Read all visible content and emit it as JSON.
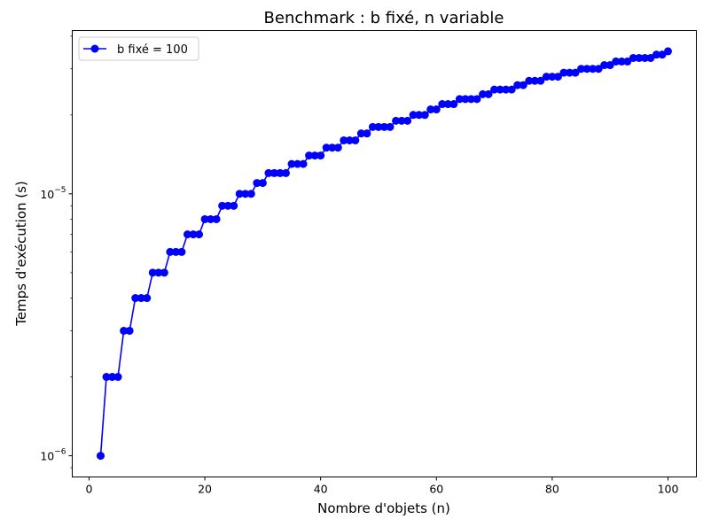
{
  "chart_data": {
    "type": "line",
    "title": "Benchmark : b fixé, n variable",
    "xlabel": "Nombre d'objets (n)",
    "ylabel": "Temps d'exécution (s)",
    "xscale": "linear",
    "yscale": "log",
    "xlim": [
      -2.9,
      104.9
    ],
    "ylim": [
      8.3e-07,
      4.2e-05
    ],
    "xticks": [
      0,
      20,
      40,
      60,
      80,
      100
    ],
    "xtick_labels": [
      "0",
      "20",
      "40",
      "60",
      "80",
      "100"
    ],
    "yticks": [
      1e-06,
      1e-05
    ],
    "ytick_labels": [
      {
        "base": "10",
        "exp": "−6"
      },
      {
        "base": "10",
        "exp": "−5"
      }
    ],
    "grid": false,
    "legend_position": "upper-left",
    "colors": {
      "series": "#0000ff"
    },
    "series": [
      {
        "name": "b fixé = 100",
        "marker": "circle",
        "x": [
          2,
          3,
          4,
          5,
          6,
          7,
          8,
          9,
          10,
          11,
          12,
          13,
          14,
          15,
          16,
          17,
          18,
          19,
          20,
          21,
          22,
          23,
          24,
          25,
          26,
          27,
          28,
          29,
          30,
          31,
          32,
          33,
          34,
          35,
          36,
          37,
          38,
          39,
          40,
          41,
          42,
          43,
          44,
          45,
          46,
          47,
          48,
          49,
          50,
          51,
          52,
          53,
          54,
          55,
          56,
          57,
          58,
          59,
          60,
          61,
          62,
          63,
          64,
          65,
          66,
          67,
          68,
          69,
          70,
          71,
          72,
          73,
          74,
          75,
          76,
          77,
          78,
          79,
          80,
          81,
          82,
          83,
          84,
          85,
          86,
          87,
          88,
          89,
          90,
          91,
          92,
          93,
          94,
          95,
          96,
          97,
          98,
          99,
          100
        ],
        "y": [
          1e-06,
          2e-06,
          2e-06,
          2e-06,
          3e-06,
          3e-06,
          4e-06,
          4e-06,
          4e-06,
          5e-06,
          5e-06,
          5e-06,
          6e-06,
          6e-06,
          6e-06,
          7e-06,
          7e-06,
          7e-06,
          8e-06,
          8e-06,
          8e-06,
          9e-06,
          9e-06,
          9e-06,
          1e-05,
          1e-05,
          1e-05,
          1.1e-05,
          1.1e-05,
          1.2e-05,
          1.2e-05,
          1.2e-05,
          1.2e-05,
          1.3e-05,
          1.3e-05,
          1.3e-05,
          1.4e-05,
          1.4e-05,
          1.4e-05,
          1.5e-05,
          1.5e-05,
          1.5e-05,
          1.6e-05,
          1.6e-05,
          1.6e-05,
          1.7e-05,
          1.7e-05,
          1.8e-05,
          1.8e-05,
          1.8e-05,
          1.8e-05,
          1.9e-05,
          1.9e-05,
          1.9e-05,
          2e-05,
          2e-05,
          2e-05,
          2.1e-05,
          2.1e-05,
          2.2e-05,
          2.2e-05,
          2.2e-05,
          2.3e-05,
          2.3e-05,
          2.3e-05,
          2.3e-05,
          2.4e-05,
          2.4e-05,
          2.5e-05,
          2.5e-05,
          2.5e-05,
          2.5e-05,
          2.6e-05,
          2.6e-05,
          2.7e-05,
          2.7e-05,
          2.7e-05,
          2.8e-05,
          2.8e-05,
          2.8e-05,
          2.9e-05,
          2.9e-05,
          2.9e-05,
          3e-05,
          3e-05,
          3e-05,
          3e-05,
          3.1e-05,
          3.1e-05,
          3.2e-05,
          3.2e-05,
          3.2e-05,
          3.3e-05,
          3.3e-05,
          3.3e-05,
          3.3e-05,
          3.4e-05,
          3.4e-05,
          3.5e-05
        ]
      }
    ]
  }
}
